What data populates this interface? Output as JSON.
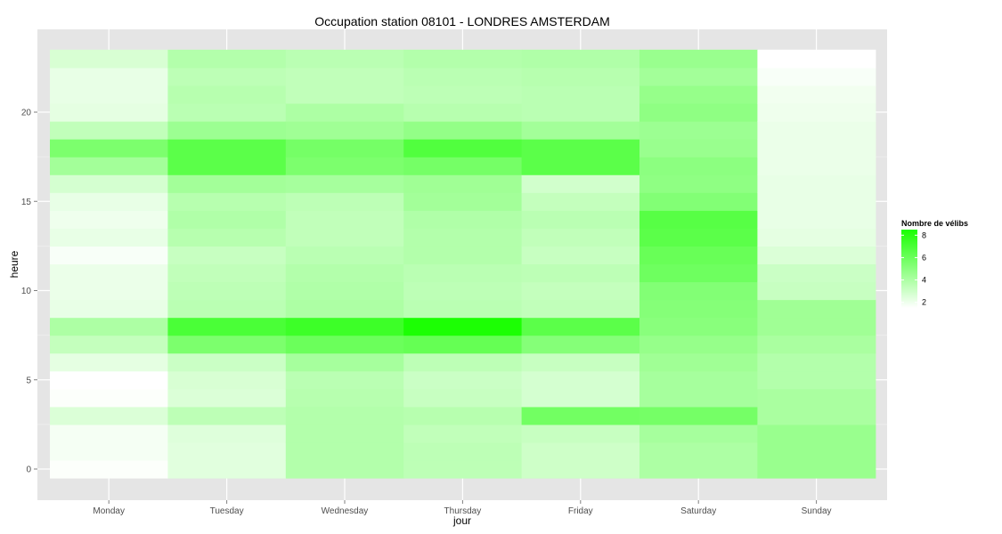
{
  "chart_data": {
    "type": "heatmap",
    "title": "Occupation station 08101 - LONDRES AMSTERDAM",
    "xlabel": "jour",
    "ylabel": "heure",
    "x_categories": [
      "Monday",
      "Tuesday",
      "Wednesday",
      "Thursday",
      "Friday",
      "Saturday",
      "Sunday"
    ],
    "y_values": [
      0,
      1,
      2,
      3,
      4,
      5,
      6,
      7,
      8,
      9,
      10,
      11,
      12,
      13,
      14,
      15,
      16,
      17,
      18,
      19,
      20,
      21,
      22,
      23
    ],
    "y_ticks": [
      0,
      5,
      10,
      15,
      20
    ],
    "ylim": [
      -0.5,
      23.5
    ],
    "grid": true,
    "values": {
      "Monday": [
        1.6,
        1.8,
        1.8,
        2.6,
        1.6,
        1.5,
        2.3,
        3.3,
        4.0,
        2.2,
        2.1,
        2.1,
        1.7,
        2.2,
        2.0,
        2.2,
        2.8,
        4.3,
        5.5,
        3.4,
        2.3,
        2.2,
        2.2,
        2.7
      ],
      "Tuesday": [
        2.4,
        2.4,
        2.5,
        3.5,
        2.6,
        2.7,
        3.1,
        5.5,
        7.0,
        3.6,
        3.5,
        3.4,
        3.2,
        3.7,
        3.9,
        3.7,
        4.3,
        6.5,
        6.5,
        4.5,
        3.6,
        3.7,
        3.5,
        3.8
      ],
      "Wednesday": [
        3.8,
        3.8,
        3.8,
        3.8,
        3.7,
        3.6,
        4.2,
        6.0,
        7.4,
        4.0,
        3.9,
        3.8,
        3.6,
        3.4,
        3.4,
        3.5,
        4.2,
        5.5,
        5.7,
        4.4,
        4.0,
        3.4,
        3.4,
        3.6
      ],
      "Thursday": [
        3.5,
        3.5,
        3.4,
        3.7,
        3.2,
        3.1,
        3.5,
        6.2,
        8.4,
        3.6,
        3.5,
        3.6,
        3.8,
        3.8,
        3.9,
        4.3,
        4.4,
        5.7,
        6.8,
        4.8,
        3.7,
        3.5,
        3.6,
        3.8
      ],
      "Friday": [
        3.0,
        3.0,
        3.2,
        5.8,
        2.8,
        2.8,
        3.2,
        5.2,
        6.5,
        3.4,
        3.3,
        3.5,
        3.2,
        3.4,
        3.6,
        3.3,
        2.9,
        6.5,
        6.5,
        4.3,
        3.6,
        3.6,
        3.7,
        3.9
      ],
      "Saturday": [
        4.0,
        4.0,
        4.2,
        5.7,
        4.2,
        4.2,
        4.4,
        4.7,
        5.1,
        5.2,
        5.3,
        5.9,
        6.1,
        6.5,
        6.6,
        5.3,
        4.9,
        5.0,
        4.6,
        4.5,
        4.9,
        4.7,
        4.3,
        4.6
      ],
      "Sunday": [
        4.6,
        4.6,
        4.6,
        4.1,
        4.1,
        3.8,
        3.8,
        4.1,
        4.4,
        4.4,
        3.2,
        3.1,
        2.6,
        2.3,
        2.2,
        2.2,
        2.2,
        2.1,
        2.1,
        2.1,
        2.0,
        1.9,
        1.7,
        1.5
      ]
    },
    "legend": {
      "title": "Nombre de vélibs",
      "placement": "right",
      "ticks": [
        2,
        4,
        6,
        8
      ],
      "range": [
        1.5,
        8.5
      ],
      "color_low": "#ffffff",
      "color_high": "#19ff00"
    },
    "panel_background": "#e5e5e5",
    "grid_color": "#ffffff"
  }
}
